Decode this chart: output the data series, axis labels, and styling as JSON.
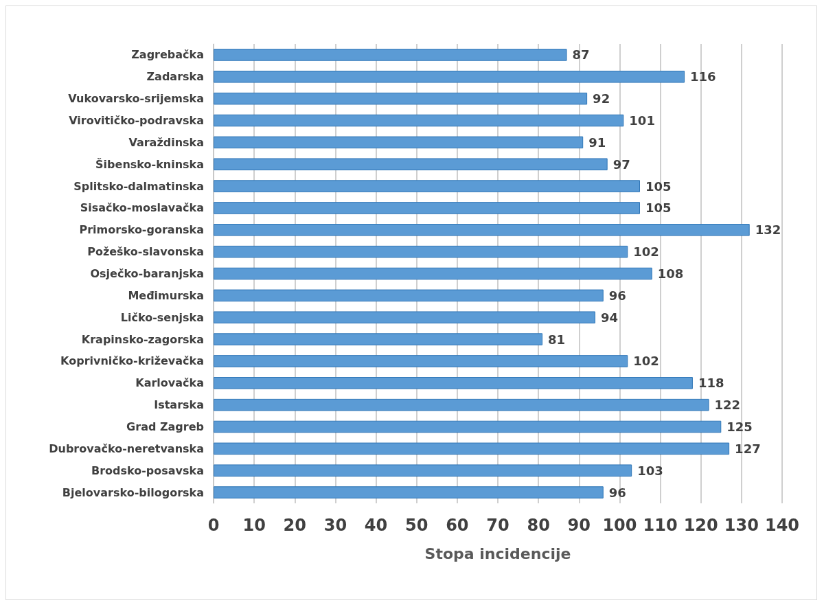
{
  "chart_data": {
    "type": "bar",
    "orientation": "horizontal",
    "xlabel": "Stopa incidencije",
    "categories": [
      "Zagrebačka",
      "Zadarska",
      "Vukovarsko-srijemska",
      "Virovitičko-podravska",
      "Varaždinska",
      "Šibensko-kninska",
      "Splitsko-dalmatinska",
      "Sisačko-moslavačka",
      "Primorsko-goranska",
      "Požeško-slavonska",
      "Osječko-baranjska",
      "Međimurska",
      "Ličko-senjska",
      "Krapinsko-zagorska",
      "Koprivničko-križevačka",
      "Karlovačka",
      "Istarska",
      "Grad Zagreb",
      "Dubrovačko-neretvanska",
      "Brodsko-posavska",
      "Bjelovarsko-bilogorska"
    ],
    "values": [
      87,
      116,
      92,
      101,
      91,
      97,
      105,
      105,
      132,
      102,
      108,
      96,
      94,
      81,
      102,
      118,
      122,
      125,
      127,
      103,
      96
    ],
    "color": "#5b9bd5",
    "xlim": [
      0,
      140
    ],
    "xticks": [
      0,
      10,
      20,
      30,
      40,
      50,
      60,
      70,
      80,
      90,
      100,
      110,
      120,
      130,
      140
    ],
    "grid": "x",
    "data_labels": true
  }
}
